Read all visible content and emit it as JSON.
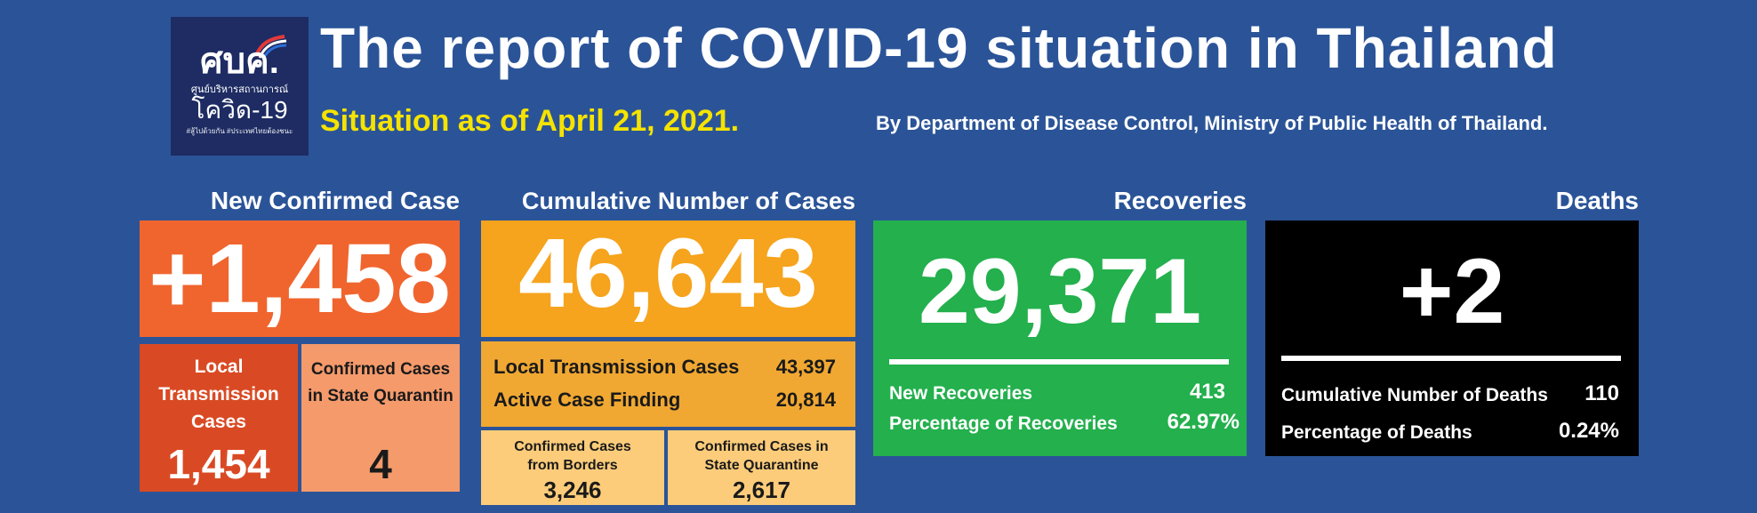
{
  "logo": {
    "main": "ศบค.",
    "sub1": "ศูนย์บริหารสถานการณ์",
    "sub2": "โควิด-19",
    "sub3": "#สู้ไปด้วยกัน #ประเทศไทยต้องชนะ"
  },
  "header": {
    "title": "The report of COVID-19 situation in Thailand",
    "subtitle": "Situation as of April 21, 2021.",
    "department": "By Department of Disease Control, Ministry of Public Health of Thailand."
  },
  "new_confirmed": {
    "heading": "New Confirmed Case",
    "value": "+1,458",
    "local_label": "Local Transmission Cases",
    "local_value": "1,454",
    "quarantine_label": "Confirmed Cases in State Quarantin",
    "quarantine_value": "4"
  },
  "cumulative": {
    "heading": "Cumulative Number of Cases",
    "value": "46,643",
    "local_label": "Local Transmission Cases",
    "local_value": "43,397",
    "active_label": "Active Case Finding",
    "active_value": "20,814",
    "borders_label": "Confirmed Cases from Borders",
    "borders_value": "3,246",
    "quarantine_label": "Confirmed Cases in State Quarantine",
    "quarantine_value": "2,617"
  },
  "recoveries": {
    "heading": "Recoveries",
    "value": "29,371",
    "new_label": "New Recoveries",
    "new_value": "413",
    "pct_label": "Percentage of Recoveries",
    "pct_value": "62.97%"
  },
  "deaths": {
    "heading": "Deaths",
    "value": "+2",
    "cum_label": "Cumulative Number of Deaths",
    "cum_value": "110",
    "pct_label": "Percentage of Deaths",
    "pct_value": "0.24%"
  },
  "colors": {
    "background": "#2b5498",
    "new_case": "#f0652e",
    "cumulative": "#f6a31d",
    "recoveries": "#23b04d",
    "deaths": "#000000",
    "subtitle": "#f5e300"
  }
}
